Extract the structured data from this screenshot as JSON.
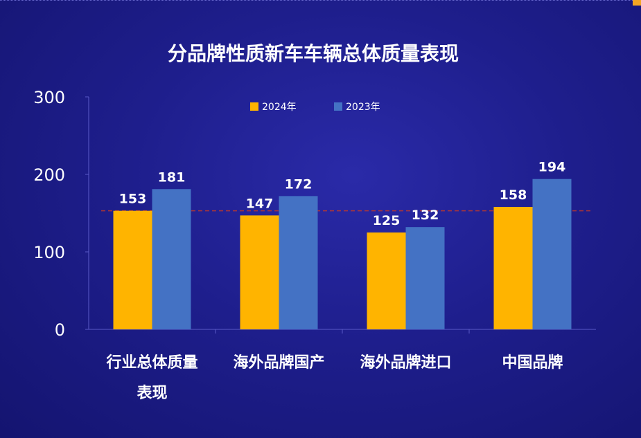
{
  "chart_data": {
    "type": "bar",
    "title": "分品牌性质新车车辆总体质量表现",
    "categories": [
      [
        "行业总体质量",
        "表现"
      ],
      [
        "海外品牌国产"
      ],
      [
        "海外品牌进口"
      ],
      [
        "中国品牌"
      ]
    ],
    "series": [
      {
        "name": "2024年",
        "color": "#ffb400",
        "values": [
          153,
          147,
          125,
          158
        ]
      },
      {
        "name": "2023年",
        "color": "#4472c4",
        "values": [
          181,
          172,
          132,
          194
        ]
      }
    ],
    "ylim": [
      0,
      300
    ],
    "yticks": [
      0,
      100,
      200,
      300
    ],
    "reference_line": {
      "value": 153,
      "style": "dashed",
      "color": "#c0392b"
    },
    "legend_position": "top-center",
    "grid": false
  }
}
